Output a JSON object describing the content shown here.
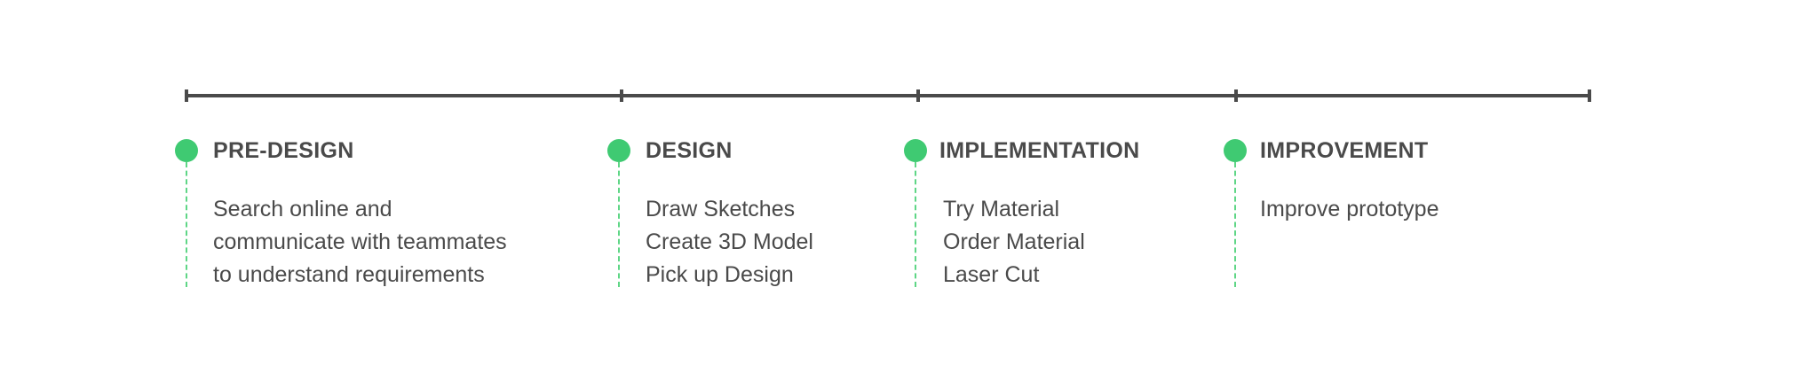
{
  "stages": [
    {
      "title": "PRE-DESIGN",
      "lines": [
        "Search online and",
        "communicate with teammates",
        "to understand requirements"
      ]
    },
    {
      "title": "DESIGN",
      "lines": [
        "Draw Sketches",
        "Create 3D Model",
        "Pick up Design"
      ]
    },
    {
      "title": "IMPLEMENTATION",
      "lines": [
        "Try Material",
        "Order Material",
        "Laser Cut"
      ]
    },
    {
      "title": "IMPROVEMENT",
      "lines": [
        "Improve prototype"
      ]
    }
  ],
  "colors": {
    "axis": "#4a4a4a",
    "marker": "#3fca72",
    "dashed_line": "#5fd686",
    "text": "#4a4a4a"
  }
}
